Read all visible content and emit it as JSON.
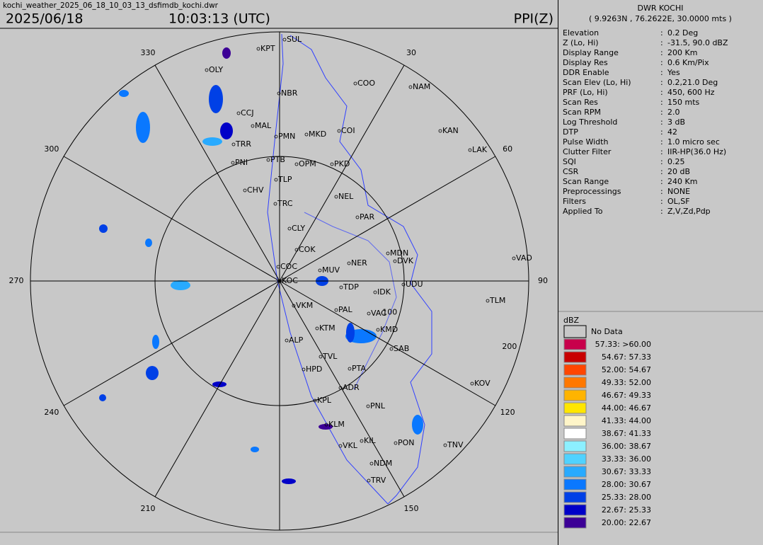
{
  "header": {
    "filename": "kochi_weather_2025_06_18_10_03_13_dsfimdb_kochi.dwr",
    "date": "2025/06/18",
    "time": "10:03:13 (UTC)",
    "product": "PPI(Z)"
  },
  "radar": {
    "azimuth_labels": [
      30,
      60,
      90,
      120,
      150,
      210,
      240,
      270,
      300,
      330
    ],
    "range_labels": [
      100,
      200
    ],
    "stations": [
      "SUL",
      "KPT",
      "OLY",
      "NBR",
      "COO",
      "NAM",
      "CCJ",
      "MAL",
      "PMN",
      "MKD",
      "COI",
      "KAN",
      "LAK",
      "TRR",
      "PTB",
      "PNI",
      "OPM",
      "PKD",
      "TLP",
      "CHV",
      "NEL",
      "PAR",
      "TRC",
      "CLY",
      "COK",
      "MDN",
      "DVK",
      "VAD",
      "COC",
      "MUV",
      "NER",
      "KOC",
      "UDU",
      "TDP",
      "IDK",
      "TLM",
      "VKM",
      "PAL",
      "VAC",
      "KTM",
      "KMD",
      "SAB",
      "ALP",
      "TVL",
      "HPD",
      "PTA",
      "KOV",
      "ADR",
      "KPL",
      "PNL",
      "KLM",
      "KIL",
      "PON",
      "TNV",
      "VKL",
      "NDM",
      "TRV"
    ]
  },
  "info": {
    "title": "DWR KOCHI",
    "location": "( 9.9263N , 76.2622E, 30.0000 mts )",
    "rows": [
      [
        "Elevation",
        "0.2 Deg"
      ],
      [
        "Z (Lo, Hi)",
        "-31.5, 90.0 dBZ"
      ],
      [
        "Display Range",
        "200 Km"
      ],
      [
        "Display Res",
        "0.6 Km/Pix"
      ],
      [
        "DDR Enable",
        "Yes"
      ],
      [
        "Scan Elev (Lo, Hi)",
        "0.2,21.0 Deg"
      ],
      [
        "PRF (Lo, Hi)",
        "450, 600 Hz"
      ],
      [
        "Scan Res",
        "150 mts"
      ],
      [
        "Scan RPM",
        "2.0"
      ],
      [
        "Log Threshold",
        "3 dB"
      ],
      [
        "DTP",
        "42"
      ],
      [
        "Pulse Width",
        "1.0 micro sec"
      ],
      [
        "Clutter Filter",
        "IIR-HP(36.0 Hz)"
      ],
      [
        "SQI",
        "0.25"
      ],
      [
        "CSR",
        "20 dB"
      ],
      [
        "Scan Range",
        "240 Km"
      ],
      [
        "Preprocessings",
        "NONE"
      ],
      [
        "Filters",
        "OL,SF"
      ],
      [
        "Applied To",
        "Z,V,Zd,Pdp"
      ]
    ]
  },
  "legend": {
    "title": "dBZ",
    "no_data": "No Data",
    "entries": [
      {
        "label": "57.33: >60.00",
        "color": "#c8004b"
      },
      {
        "label": "54.67: 57.33",
        "color": "#c80000"
      },
      {
        "label": "52.00: 54.67",
        "color": "#ff4600"
      },
      {
        "label": "49.33: 52.00",
        "color": "#ff7800"
      },
      {
        "label": "46.67: 49.33",
        "color": "#ffb400"
      },
      {
        "label": "44.00: 46.67",
        "color": "#ffe600"
      },
      {
        "label": "41.33: 44.00",
        "color": "#fff5c8"
      },
      {
        "label": "38.67: 41.33",
        "color": "#ffffff"
      },
      {
        "label": "36.00: 38.67",
        "color": "#8cf0ff"
      },
      {
        "label": "33.33: 36.00",
        "color": "#50d2ff"
      },
      {
        "label": "30.67: 33.33",
        "color": "#28aaff"
      },
      {
        "label": "28.00: 30.67",
        "color": "#0a78ff"
      },
      {
        "label": "25.33: 28.00",
        "color": "#0040e6"
      },
      {
        "label": "22.67: 25.33",
        "color": "#0000c8"
      },
      {
        "label": "20.00: 22.67",
        "color": "#3c0096"
      }
    ]
  }
}
